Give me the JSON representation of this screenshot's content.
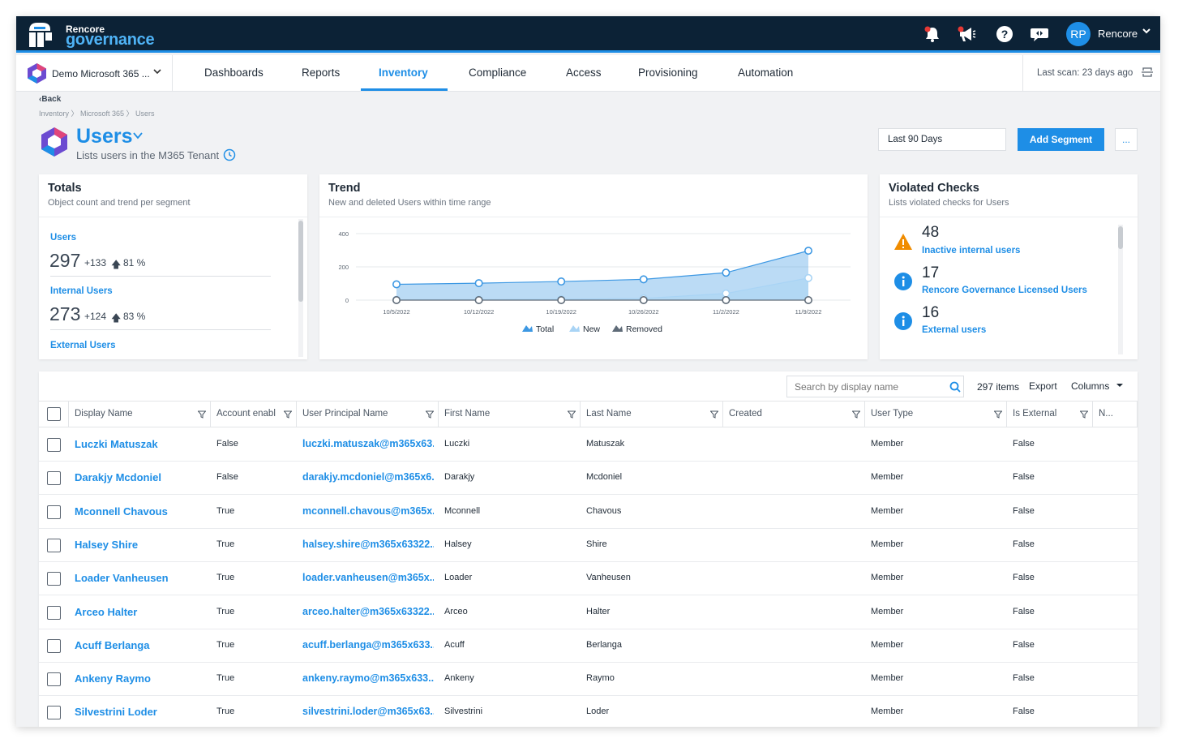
{
  "app": {
    "brand_top": "Rencore",
    "brand_bottom": "governance",
    "user_initials": "RP",
    "user_name": "Rencore"
  },
  "nav": {
    "tenant": "Demo Microsoft 365 ...",
    "tabs": [
      {
        "label": "Dashboards"
      },
      {
        "label": "Reports"
      },
      {
        "label": "Inventory",
        "active": true
      },
      {
        "label": "Compliance"
      },
      {
        "label": "Access"
      },
      {
        "label": "Provisioning"
      },
      {
        "label": "Automation"
      }
    ],
    "last_scan": "Last scan: 23 days ago"
  },
  "header": {
    "back": "Back",
    "breadcrumb": "Inventory 〉 Microsoft 365 〉 Users",
    "title": "Users",
    "subtitle": "Lists users in the M365 Tenant",
    "range": "Last 90 Days",
    "add_segment": "Add Segment",
    "more": "..."
  },
  "totals": {
    "title": "Totals",
    "subtitle": "Object count and trend per segment",
    "items": [
      {
        "label": "Users",
        "value": "297",
        "delta": "+133",
        "pct": "81 %"
      },
      {
        "label": "Internal Users",
        "value": "273",
        "delta": "+124",
        "pct": "83 %"
      },
      {
        "label": "External Users"
      }
    ]
  },
  "trend": {
    "title": "Trend",
    "subtitle": "New and deleted Users within time range"
  },
  "chart_data": {
    "type": "area",
    "x": [
      "10/5/2022",
      "10/12/2022",
      "10/19/2022",
      "10/26/2022",
      "11/2/2022",
      "11/9/2022"
    ],
    "yticks": [
      "400",
      "200",
      "0"
    ],
    "ylim": [
      0,
      400
    ],
    "series": [
      {
        "name": "Total",
        "values": [
          95,
          102,
          112,
          125,
          165,
          297
        ],
        "color": "#3d98e3"
      },
      {
        "name": "New",
        "values": [
          2,
          3,
          5,
          10,
          40,
          133
        ],
        "color": "#a9d4f5"
      },
      {
        "name": "Removed",
        "values": [
          0,
          0,
          0,
          0,
          0,
          0
        ],
        "color": "#5f6b78"
      }
    ],
    "legend": "bottom"
  },
  "violated": {
    "title": "Violated Checks",
    "subtitle": "Lists violated checks for Users",
    "items": [
      {
        "count": "48",
        "label": "Inactive internal users",
        "icon": "warning-icon"
      },
      {
        "count": "17",
        "label": "Rencore Governance Licensed Users",
        "icon": "info-icon"
      },
      {
        "count": "16",
        "label": "External users",
        "icon": "info-icon"
      }
    ]
  },
  "table": {
    "search_placeholder": "Search by display name",
    "count": "297 items",
    "export": "Export",
    "columns": "Columns",
    "headers": [
      "Display Name",
      "Account enabl",
      "User Principal Name",
      "First Name",
      "Last Name",
      "Created",
      "User Type",
      "Is External",
      "N..."
    ],
    "rows": [
      {
        "display": "Luczki Matuszak",
        "enabled": "False",
        "upn": "luczki.matuszak@m365x63...",
        "first": "Luczki",
        "last": "Matuszak",
        "type": "Member",
        "external": "False"
      },
      {
        "display": "Darakjy Mcdoniel",
        "enabled": "False",
        "upn": "darakjy.mcdoniel@m365x6...",
        "first": "Darakjy",
        "last": "Mcdoniel",
        "type": "Member",
        "external": "False"
      },
      {
        "display": "Mconnell Chavous",
        "enabled": "True",
        "upn": "mconnell.chavous@m365x...",
        "first": "Mconnell",
        "last": "Chavous",
        "type": "Member",
        "external": "False"
      },
      {
        "display": "Halsey Shire",
        "enabled": "True",
        "upn": "halsey.shire@m365x63322...",
        "first": "Halsey",
        "last": "Shire",
        "type": "Member",
        "external": "False"
      },
      {
        "display": "Loader Vanheusen",
        "enabled": "True",
        "upn": "loader.vanheusen@m365x...",
        "first": "Loader",
        "last": "Vanheusen",
        "type": "Member",
        "external": "False"
      },
      {
        "display": "Arceo Halter",
        "enabled": "True",
        "upn": "arceo.halter@m365x63322...",
        "first": "Arceo",
        "last": "Halter",
        "type": "Member",
        "external": "False"
      },
      {
        "display": "Acuff Berlanga",
        "enabled": "True",
        "upn": "acuff.berlanga@m365x633...",
        "first": "Acuff",
        "last": "Berlanga",
        "type": "Member",
        "external": "False"
      },
      {
        "display": "Ankeny Raymo",
        "enabled": "True",
        "upn": "ankeny.raymo@m365x633...",
        "first": "Ankeny",
        "last": "Raymo",
        "type": "Member",
        "external": "False"
      },
      {
        "display": "Silvestrini Loder",
        "enabled": "True",
        "upn": "silvestrini.loder@m365x63...",
        "first": "Silvestrini",
        "last": "Loder",
        "type": "Member",
        "external": "False"
      }
    ]
  }
}
